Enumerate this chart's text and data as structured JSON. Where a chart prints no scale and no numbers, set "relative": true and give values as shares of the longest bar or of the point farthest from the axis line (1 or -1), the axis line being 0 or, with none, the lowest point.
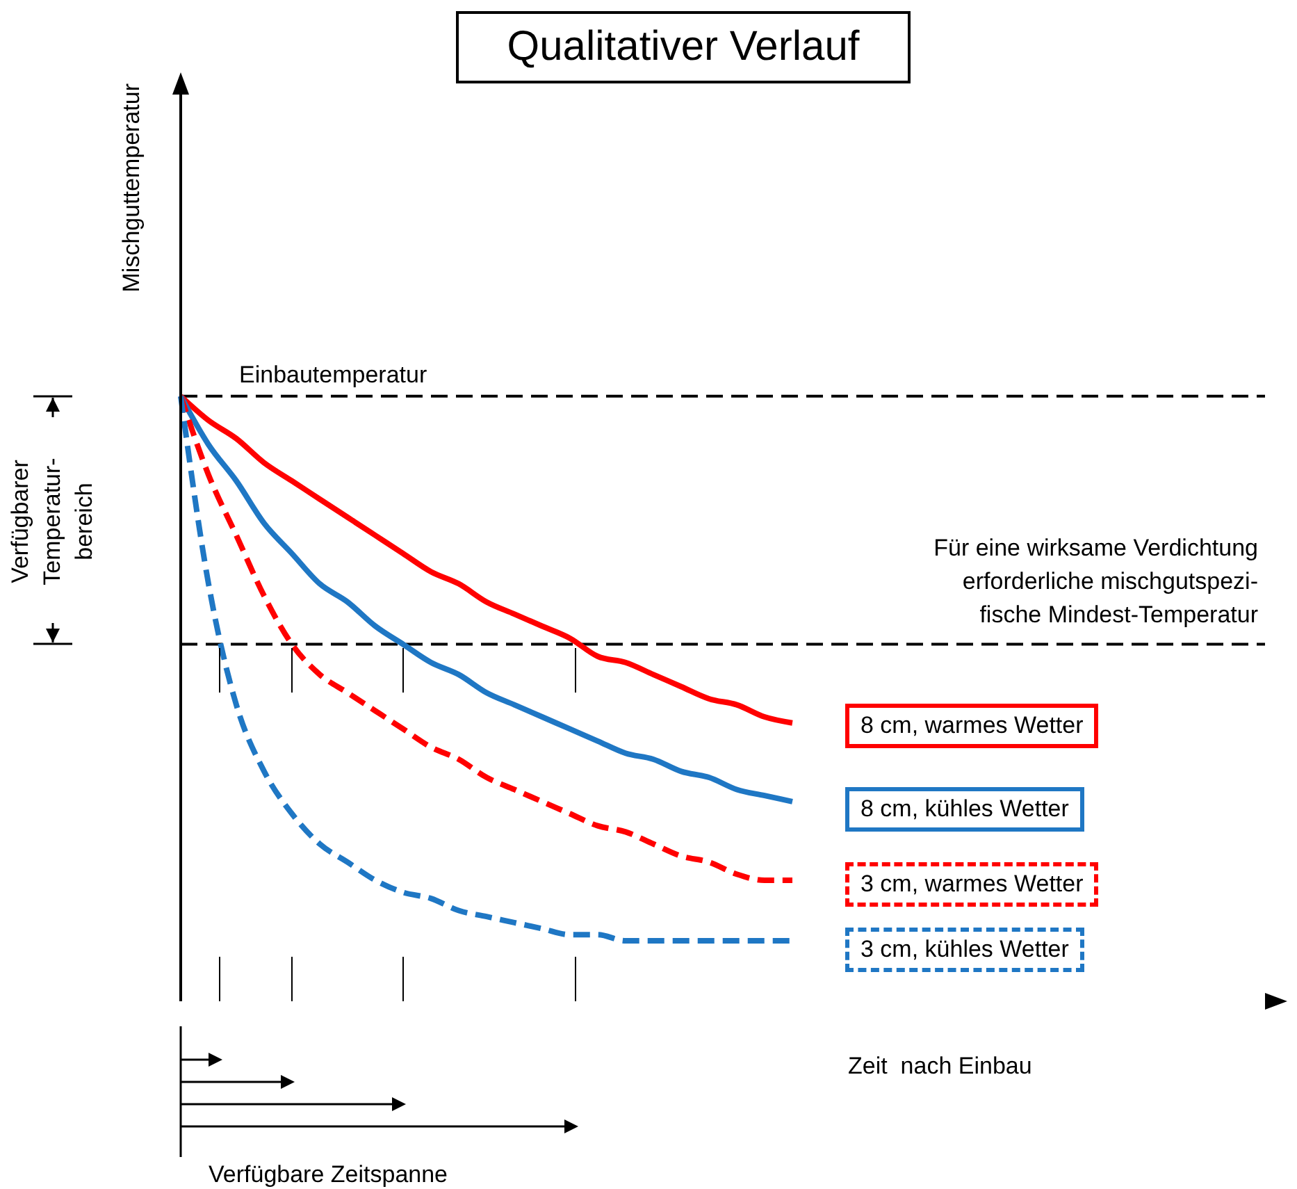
{
  "chart_data": {
    "type": "line",
    "title": "Qualitativer Verlauf",
    "xlabel": "Zeit  nach Einbau",
    "ylabel": "Mischguttemperatur",
    "relative": true,
    "marker": "none",
    "legend": "right",
    "categories": [
      null,
      null,
      null,
      null,
      null,
      null,
      null,
      null,
      null,
      null,
      null,
      null,
      null,
      null,
      null,
      null,
      null,
      null,
      null,
      null,
      null,
      null,
      null,
      null,
      null,
      null,
      null,
      null,
      null,
      null,
      null,
      null,
      null,
      null,
      null,
      null,
      null,
      null,
      null,
      null
    ],
    "series": [
      {
        "name": "8 cm, warmes Wetter",
        "color": "#ff0000",
        "line_style": "solid",
        "values": [
          1,
          0.96,
          0.93,
          0.89,
          0.86,
          0.83,
          0.8,
          0.77,
          0.74,
          0.71,
          0.69,
          0.66,
          0.64,
          0.62,
          0.6,
          0.57,
          0.56,
          0.54,
          0.52,
          0.5,
          0.49,
          0.47,
          0.46,
          null,
          null,
          null,
          null,
          null,
          null,
          null,
          null,
          null,
          null,
          null,
          null,
          null,
          null,
          null,
          null,
          null
        ]
      },
      {
        "name": "8 cm, kühles Wetter",
        "color": "#1f77c4",
        "line_style": "solid",
        "values": [
          1,
          0.92,
          0.86,
          0.79,
          0.74,
          0.69,
          0.66,
          0.62,
          0.59,
          0.56,
          0.54,
          0.51,
          0.49,
          0.47,
          0.45,
          0.43,
          0.41,
          0.4,
          0.38,
          0.37,
          0.35,
          0.34,
          0.33,
          null,
          null,
          null,
          null,
          null,
          null,
          null,
          null,
          null,
          null,
          null,
          null,
          null,
          null,
          null,
          null,
          null
        ]
      },
      {
        "name": "3 cm, warmes Wetter",
        "color": "#ff0000",
        "line_style": "dashed",
        "values": [
          1,
          0.87,
          0.77,
          0.67,
          0.59,
          0.54,
          0.51,
          0.48,
          0.45,
          0.42,
          0.4,
          0.37,
          0.35,
          0.33,
          0.31,
          0.29,
          0.28,
          0.26,
          0.24,
          0.23,
          0.21,
          0.2,
          0.2,
          null,
          null,
          null,
          null,
          null,
          null,
          null,
          null,
          null,
          null,
          null,
          null,
          null,
          null,
          null,
          null,
          null
        ]
      },
      {
        "name": "3 cm, kühles Wetter",
        "color": "#1f77c4",
        "line_style": "dashed",
        "values": [
          1,
          0.69,
          0.49,
          0.38,
          0.31,
          0.26,
          0.23,
          0.2,
          0.18,
          0.17,
          0.15,
          0.14,
          0.13,
          0.12,
          0.11,
          0.11,
          0.1,
          0.1,
          0.1,
          0.1,
          0.1,
          0.1,
          0.1,
          null,
          null,
          null,
          null,
          null,
          null,
          null,
          null,
          null,
          null,
          null,
          null,
          null,
          null,
          null,
          null,
          null
        ]
      }
    ],
    "ref_lines": [
      {
        "axis": "y",
        "value": 1,
        "label": "Einbautemperatur",
        "color": "#000000",
        "line_style": "dashed"
      },
      {
        "axis": "y",
        "value": 0.59,
        "label": "Für eine wirksame Verdichtung\nerforderliche mischgutspezi-\nfische Mindest-Temperatur",
        "color": "#000000",
        "line_style": "dashed"
      }
    ],
    "annotations": [
      "Verfügbarer\nTemperatur-\nbereich",
      "Verfügbare Zeitspanne"
    ]
  }
}
